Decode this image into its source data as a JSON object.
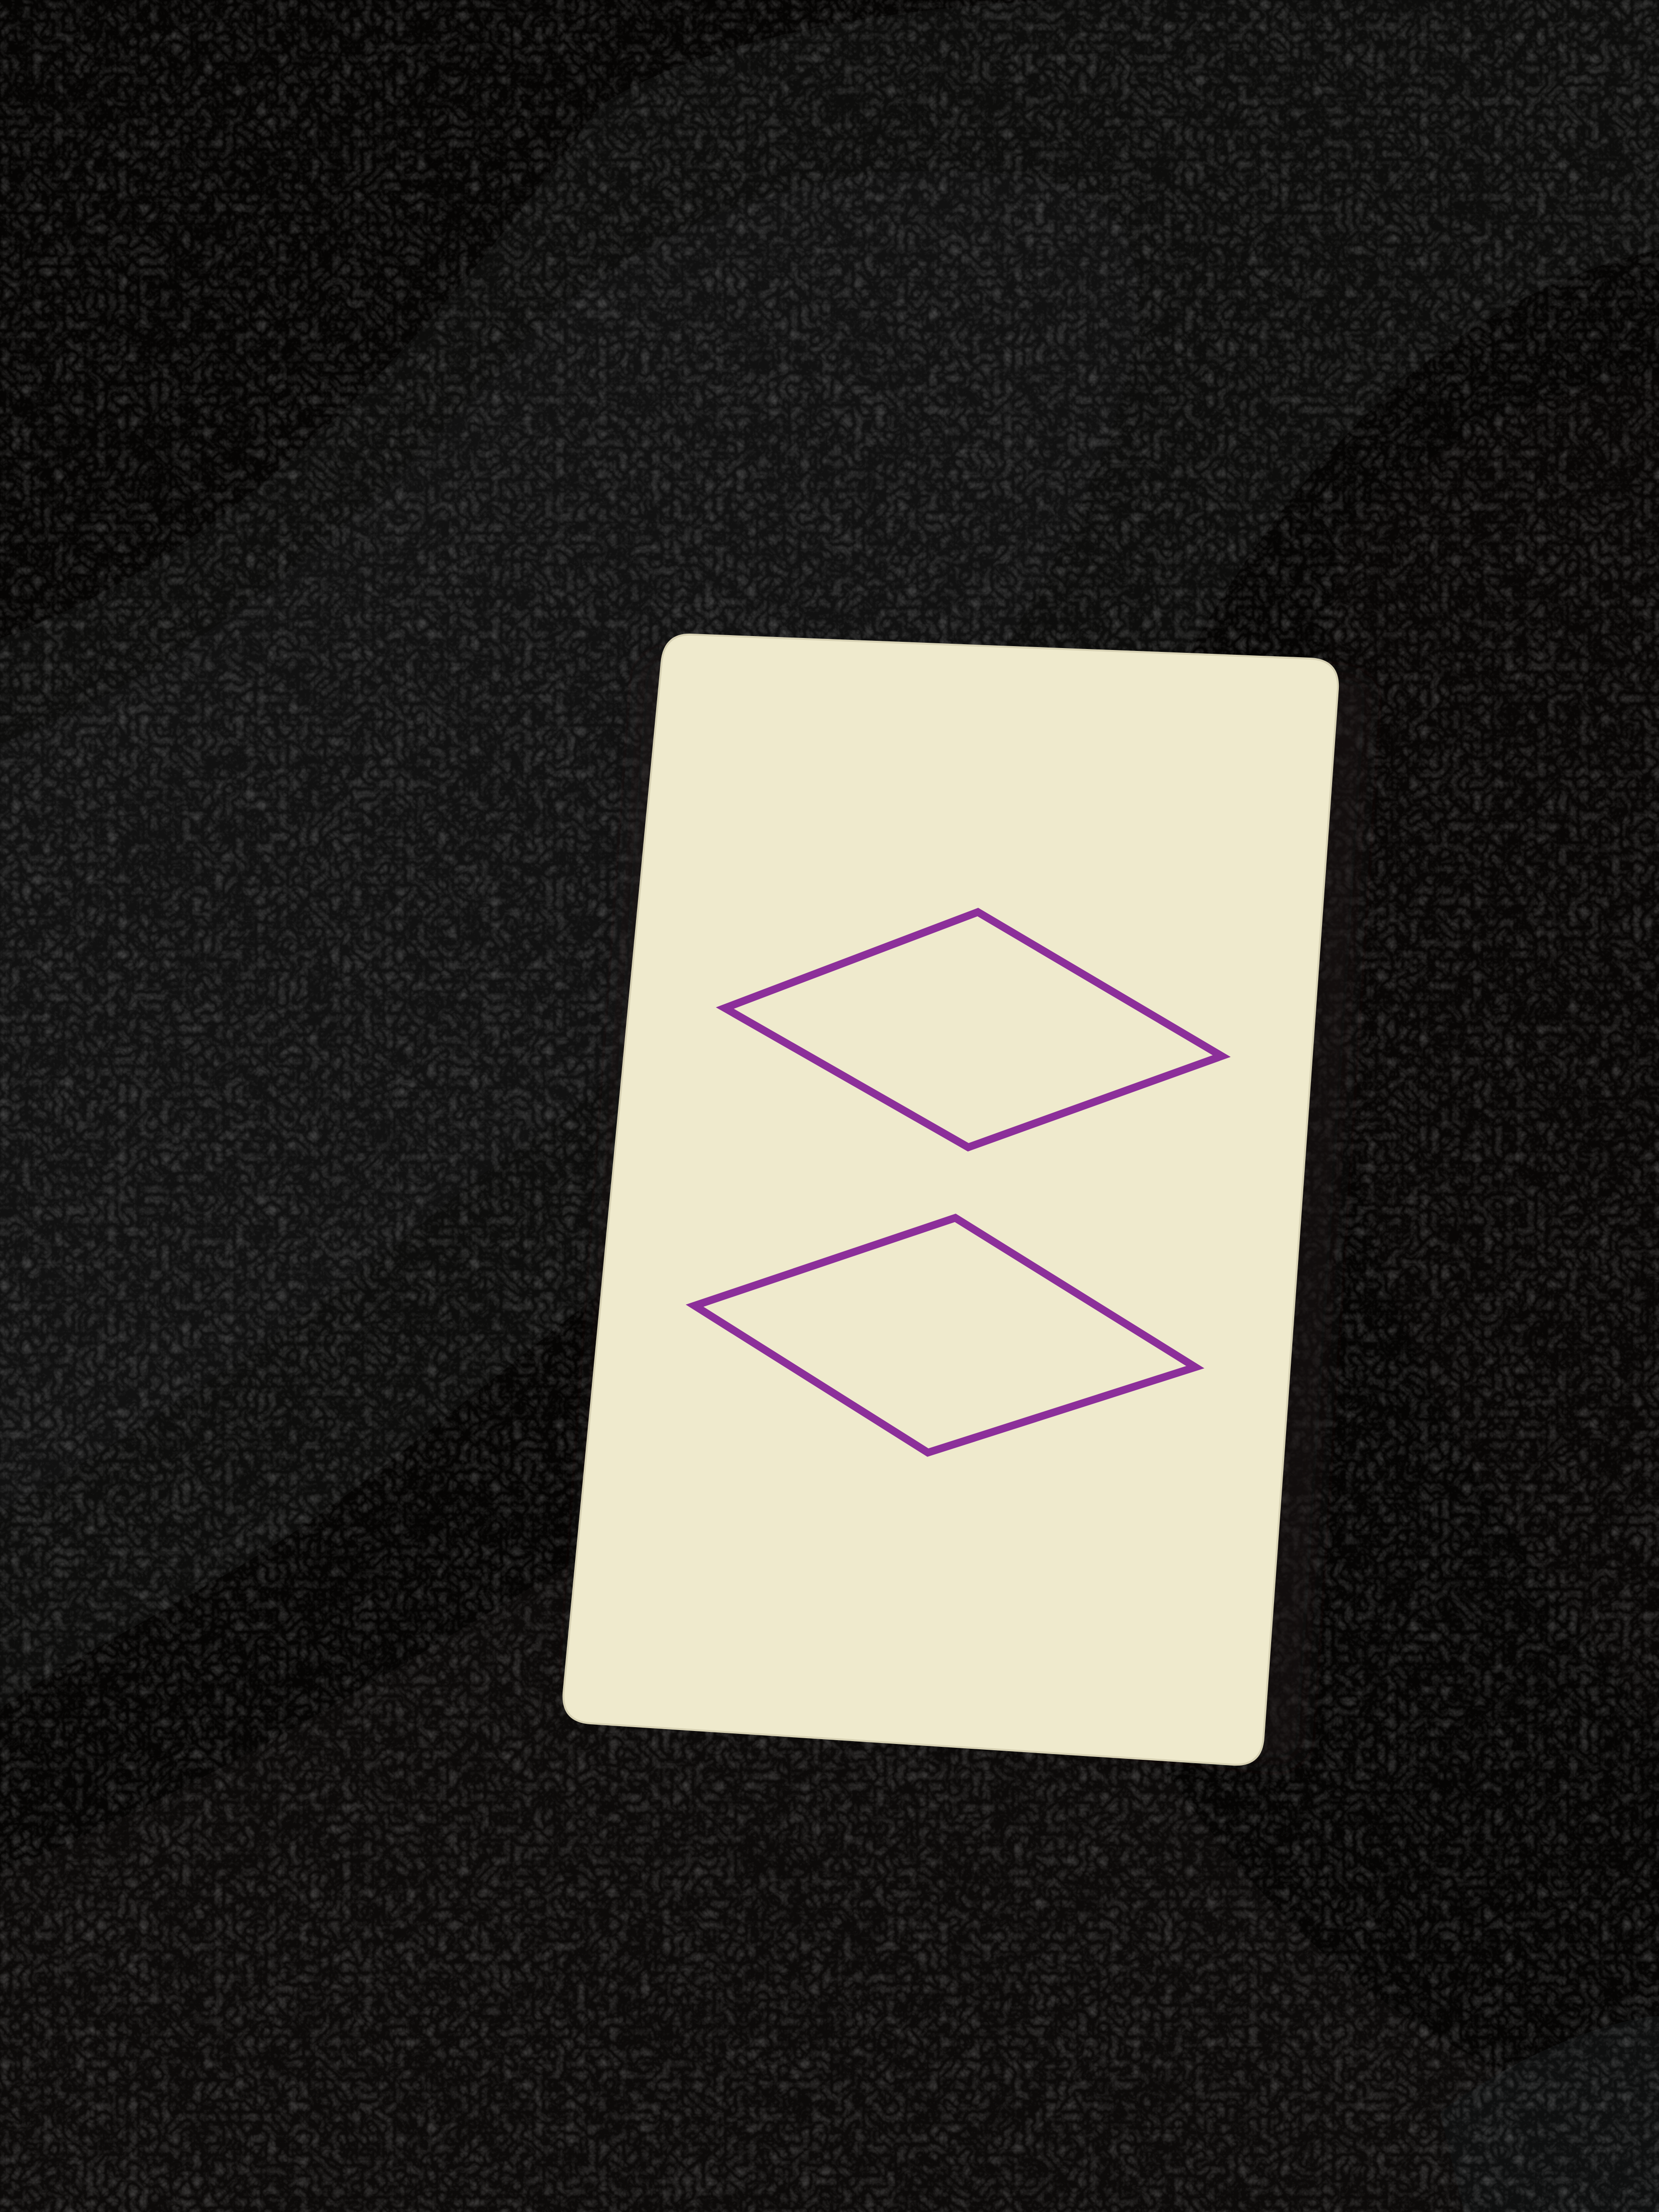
{
  "scene": {
    "description_tag": "shag-rug-card-photo",
    "rug": {
      "colors": {
        "brown_dark": "#3b2a25",
        "brown_mid": "#5a463d",
        "taupe": "#7c6d5f",
        "grey_blue": "#98a1a1",
        "grey_light": "#b3b7b0",
        "grey_warm": "#8f8a7e"
      }
    },
    "card": {
      "face_color": "#efeacd",
      "edge_color": "#d8d2b4",
      "shadow_color": "#1e1613",
      "symbol": {
        "shape": "diamond",
        "count": 2,
        "fill": "none",
        "color": "#8c2f9a"
      }
    }
  }
}
